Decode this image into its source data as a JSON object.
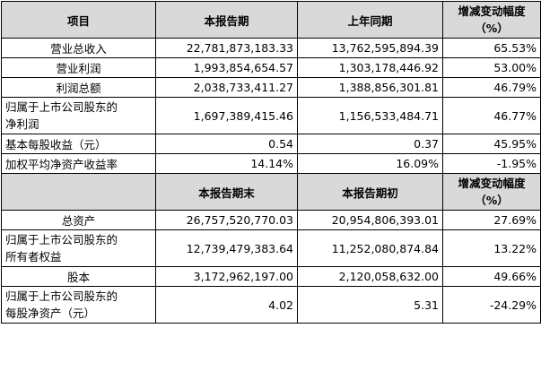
{
  "header1": {
    "item": "项目",
    "current": "本报告期",
    "prior": "上年同期",
    "change_line1": "增减变动幅度",
    "change_line2": "（%）"
  },
  "header2": {
    "current": "本报告期末",
    "prior": "本报告期初",
    "change_line1": "增减变动幅度",
    "change_line2": "（%）"
  },
  "income_rows": [
    {
      "label": "营业总收入",
      "current": "22,781,873,183.33",
      "prior": "13,762,595,894.39",
      "change": "65.53%"
    },
    {
      "label": "营业利润",
      "current": "1,993,854,654.57",
      "prior": "1,303,178,446.92",
      "change": "53.00%"
    },
    {
      "label": "利润总额",
      "current": "2,038,733,411.27",
      "prior": "1,388,856,301.81",
      "change": "46.79%"
    },
    {
      "label_line1": "归属于上市公司股东的",
      "label_line2": "净利润",
      "current": "1,697,389,415.46",
      "prior": "1,156,533,484.71",
      "change": "46.77%"
    },
    {
      "label": "基本每股收益（元）",
      "current": "0.54",
      "prior": "0.37",
      "change": "45.95%"
    },
    {
      "label": "加权平均净资产收益率",
      "current": "14.14%",
      "prior": "16.09%",
      "change": "-1.95%"
    }
  ],
  "balance_rows": [
    {
      "label": "总资产",
      "current": "26,757,520,770.03",
      "prior": "20,954,806,393.01",
      "change": "27.69%"
    },
    {
      "label_line1": "归属于上市公司股东的",
      "label_line2": "所有者权益",
      "current": "12,739,479,383.64",
      "prior": "11,252,080,874.84",
      "change": "13.22%"
    },
    {
      "label": "股本",
      "current": "3,172,962,197.00",
      "prior": "2,120,058,632.00",
      "change": "49.66%"
    },
    {
      "label_line1": "归属于上市公司股东的",
      "label_line2": "每股净资产（元）",
      "current": "4.02",
      "prior": "5.31",
      "change": "-24.29%"
    }
  ]
}
